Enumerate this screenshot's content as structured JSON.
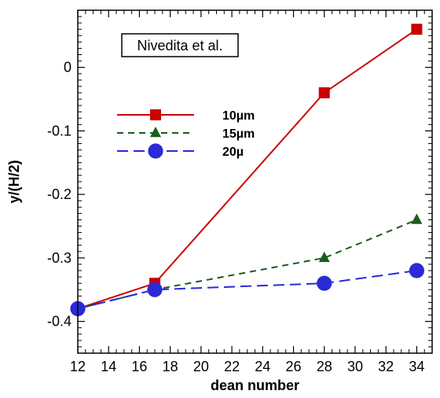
{
  "chart_data": {
    "type": "line",
    "title": "",
    "xlabel": "dean number",
    "ylabel": "y/(H/2)",
    "xlim": [
      12,
      35
    ],
    "ylim": [
      -0.45,
      0.09
    ],
    "x_ticks": [
      12,
      14,
      16,
      18,
      20,
      22,
      24,
      26,
      28,
      30,
      32,
      34
    ],
    "y_ticks": [
      0,
      -0.1,
      -0.2,
      -0.3,
      -0.4
    ],
    "y_tick_labels": [
      "0",
      "-0.1",
      "-0.2",
      "-0.3",
      "-0.4"
    ],
    "grid": false,
    "annotation": "Nivedita et al.",
    "legend_position": "upper-left",
    "series": [
      {
        "name": "10µm",
        "color": "#cc0000",
        "marker": "square",
        "line_style": "solid",
        "x": [
          12,
          17,
          28,
          34
        ],
        "y": [
          -0.38,
          -0.34,
          -0.04,
          0.06
        ]
      },
      {
        "name": "15µm",
        "color": "#1a5c1a",
        "marker": "triangle",
        "line_style": "dashed",
        "x": [
          12,
          17,
          28,
          34
        ],
        "y": [
          -0.38,
          -0.35,
          -0.3,
          -0.24
        ]
      },
      {
        "name": "20µ",
        "color": "#2a2ad6",
        "marker": "circle",
        "line_style": "long-dashed",
        "x": [
          12,
          17,
          28,
          34
        ],
        "y": [
          -0.38,
          -0.35,
          -0.34,
          -0.32
        ]
      }
    ]
  }
}
